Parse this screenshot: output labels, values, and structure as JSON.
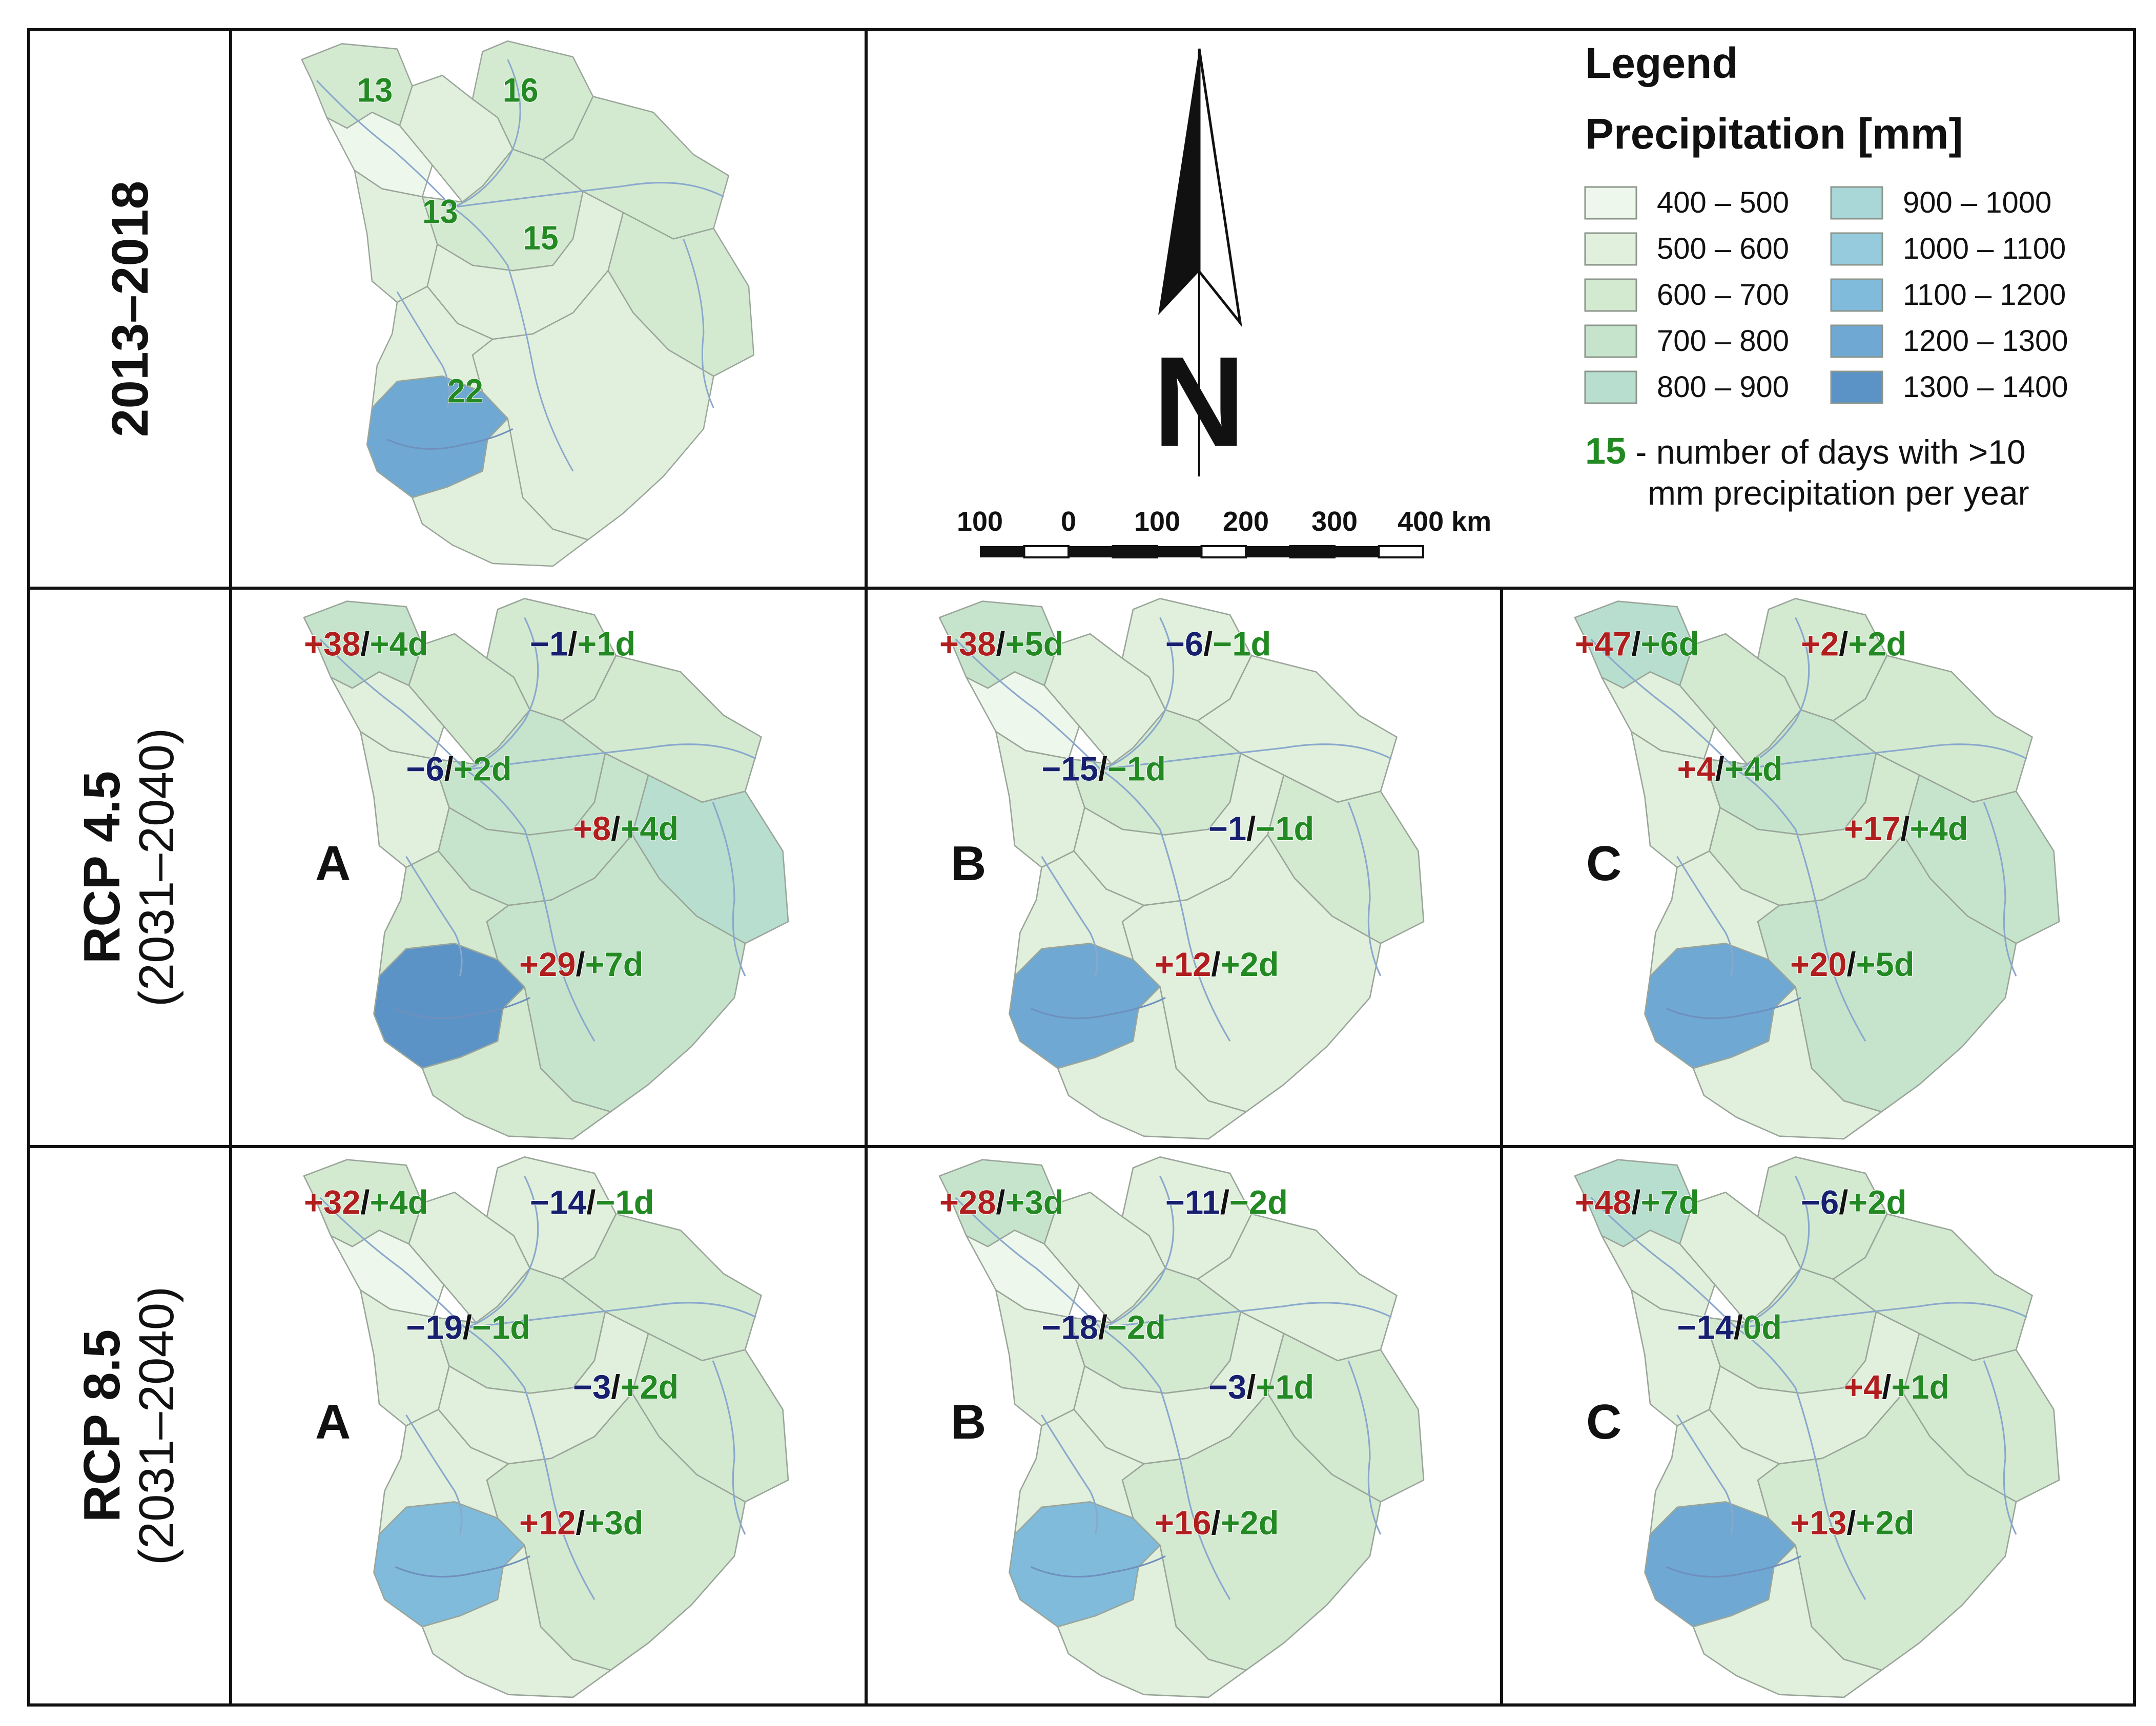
{
  "colors": {
    "red": "#b01e1e",
    "blue": "#16206e",
    "green": "#238a23",
    "ink": "#111111",
    "river": "#8aa8cc",
    "border": "#9aa59a",
    "classes": [
      "#eef7ec",
      "#e1f0dc",
      "#d3ead1",
      "#c6e4cc",
      "#b8decf",
      "#a9d6d6",
      "#95cbdc",
      "#80bbdc",
      "#6fa8d2",
      "#5b93c6"
    ]
  },
  "row_labels": {
    "baseline": "2013–2018",
    "rcp45_title": "RCP 4.5",
    "rcp45_period": "(2031–2040)",
    "rcp85_title": "RCP 8.5",
    "rcp85_period": "(2031–2040)"
  },
  "baseline_map": {
    "values": [
      "13",
      "16",
      "13",
      "15",
      "22"
    ],
    "precip_class_indices": [
      2,
      2,
      0,
      1,
      2,
      1,
      2,
      2,
      1,
      8,
      1,
      1
    ]
  },
  "scenarios": [
    {
      "row": "RCP 4.5",
      "letter": "A",
      "precip_class_indices": [
        3,
        2,
        1,
        2,
        2,
        1,
        3,
        4,
        3,
        9,
        3,
        2
      ],
      "labels": [
        {
          "mm": "+38",
          "days": "+4d"
        },
        {
          "mm": "−1",
          "days": "+1d"
        },
        {
          "mm": "−6",
          "days": "+2d"
        },
        {
          "mm": "+8",
          "days": "+4d"
        },
        {
          "mm": "+29",
          "days": "+7d"
        }
      ]
    },
    {
      "row": "RCP 4.5",
      "letter": "B",
      "precip_class_indices": [
        3,
        1,
        0,
        1,
        1,
        1,
        2,
        2,
        1,
        8,
        1,
        1
      ],
      "labels": [
        {
          "mm": "+38",
          "days": "+5d"
        },
        {
          "mm": "−6",
          "days": "−1d"
        },
        {
          "mm": "−15",
          "days": "−1d"
        },
        {
          "mm": "−1",
          "days": "−1d"
        },
        {
          "mm": "+12",
          "days": "+2d"
        }
      ]
    },
    {
      "row": "RCP 4.5",
      "letter": "C",
      "precip_class_indices": [
        4,
        2,
        1,
        2,
        2,
        1,
        3,
        3,
        2,
        8,
        3,
        1
      ],
      "labels": [
        {
          "mm": "+47",
          "days": "+6d"
        },
        {
          "mm": "+2",
          "days": "+2d"
        },
        {
          "mm": "+4",
          "days": "+4d"
        },
        {
          "mm": "+17",
          "days": "+4d"
        },
        {
          "mm": "+20",
          "days": "+5d"
        }
      ]
    },
    {
      "row": "RCP 8.5",
      "letter": "A",
      "precip_class_indices": [
        2,
        1,
        0,
        1,
        2,
        1,
        2,
        2,
        1,
        7,
        2,
        1
      ],
      "labels": [
        {
          "mm": "+32",
          "days": "+4d"
        },
        {
          "mm": "−14",
          "days": "−1d"
        },
        {
          "mm": "−19",
          "days": "−1d"
        },
        {
          "mm": "−3",
          "days": "+2d"
        },
        {
          "mm": "+12",
          "days": "+3d"
        }
      ]
    },
    {
      "row": "RCP 8.5",
      "letter": "B",
      "precip_class_indices": [
        3,
        1,
        0,
        1,
        1,
        1,
        2,
        2,
        1,
        7,
        2,
        1
      ],
      "labels": [
        {
          "mm": "+28",
          "days": "+3d"
        },
        {
          "mm": "−11",
          "days": "−2d"
        },
        {
          "mm": "−18",
          "days": "−2d"
        },
        {
          "mm": "−3",
          "days": "+1d"
        },
        {
          "mm": "+16",
          "days": "+2d"
        }
      ]
    },
    {
      "row": "RCP 8.5",
      "letter": "C",
      "precip_class_indices": [
        4,
        2,
        1,
        1,
        2,
        1,
        2,
        2,
        1,
        8,
        2,
        1
      ],
      "labels": [
        {
          "mm": "+48",
          "days": "+7d"
        },
        {
          "mm": "−6",
          "days": "+2d"
        },
        {
          "mm": "−14",
          "days": "0d"
        },
        {
          "mm": "+4",
          "days": "+1d"
        },
        {
          "mm": "+13",
          "days": "+2d"
        }
      ]
    }
  ],
  "legend": {
    "title": "Legend",
    "subtitle": "Precipitation [mm]",
    "classes": [
      {
        "range": "400 – 500",
        "color": "#eef7ec"
      },
      {
        "range": "500 – 600",
        "color": "#e1f0dc"
      },
      {
        "range": "600 – 700",
        "color": "#d3ead1"
      },
      {
        "range": "700 – 800",
        "color": "#c6e4cc"
      },
      {
        "range": "800 – 900",
        "color": "#b8decf"
      },
      {
        "range": "900 – 1000",
        "color": "#a9d6d6"
      },
      {
        "range": "1000 – 1100",
        "color": "#95cbdc"
      },
      {
        "range": "1100 – 1200",
        "color": "#80bbdc"
      },
      {
        "range": "1200 – 1300",
        "color": "#6fa8d2"
      },
      {
        "range": "1300 – 1400",
        "color": "#5b93c6"
      }
    ],
    "days_example": "15",
    "days_line1": " - number of days with >10",
    "days_line2": "mm precipitation per year"
  },
  "north_arrow": {
    "label": "N"
  },
  "scale_bar": {
    "ticks": [
      {
        "label": "100",
        "km": -100
      },
      {
        "label": "0",
        "km": 0
      },
      {
        "label": "100",
        "km": 100
      },
      {
        "label": "200",
        "km": 200
      },
      {
        "label": "300",
        "km": 300
      },
      {
        "label": "400 km",
        "km": 400
      }
    ]
  }
}
